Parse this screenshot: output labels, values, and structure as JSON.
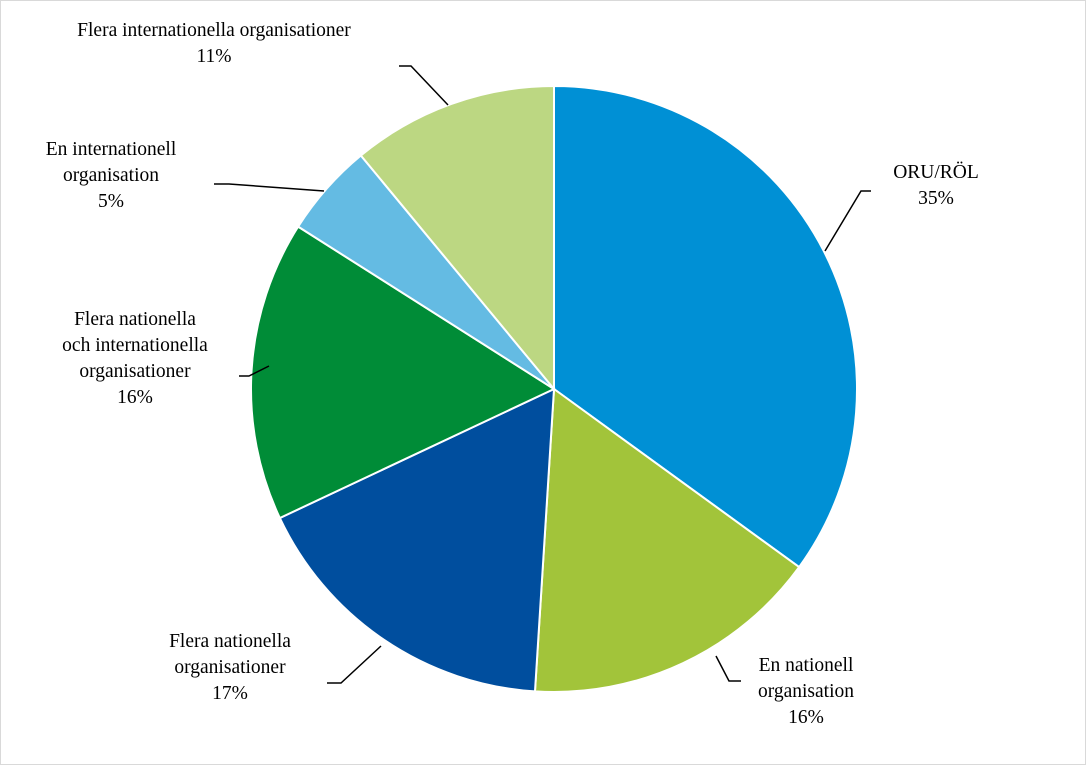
{
  "chart_data": {
    "type": "pie",
    "start_angle_deg": 0,
    "direction": "clockwise",
    "slices": [
      {
        "label_lines": [
          "ORU/RÖL"
        ],
        "value_label": "35%",
        "value": 35,
        "color": "#0090D5"
      },
      {
        "label_lines": [
          "En nationell",
          "organisation"
        ],
        "value_label": "16%",
        "value": 16,
        "color": "#A2C43A"
      },
      {
        "label_lines": [
          "Flera nationella",
          "organisationer"
        ],
        "value_label": "17%",
        "value": 17,
        "color": "#004E9E"
      },
      {
        "label_lines": [
          "Flera nationella",
          "och internationella",
          "organisationer"
        ],
        "value_label": "16%",
        "value": 16,
        "color": "#008C37"
      },
      {
        "label_lines": [
          "En internationell",
          "organisation"
        ],
        "value_label": "5%",
        "value": 5,
        "color": "#64BBE3"
      },
      {
        "label_lines": [
          "Flera internationella organisationer"
        ],
        "value_label": "11%",
        "value": 11,
        "color": "#BCD782"
      }
    ]
  }
}
